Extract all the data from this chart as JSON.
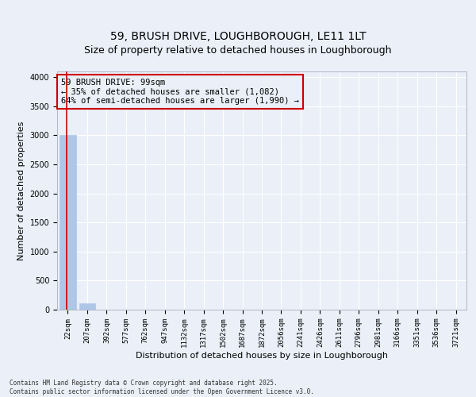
{
  "title1": "59, BRUSH DRIVE, LOUGHBOROUGH, LE11 1LT",
  "title2": "Size of property relative to detached houses in Loughborough",
  "xlabel": "Distribution of detached houses by size in Loughborough",
  "ylabel": "Number of detached properties",
  "categories": [
    "22sqm",
    "207sqm",
    "392sqm",
    "577sqm",
    "762sqm",
    "947sqm",
    "1132sqm",
    "1317sqm",
    "1502sqm",
    "1687sqm",
    "1872sqm",
    "2056sqm",
    "2241sqm",
    "2426sqm",
    "2611sqm",
    "2796sqm",
    "2981sqm",
    "3166sqm",
    "3351sqm",
    "3536sqm",
    "3721sqm"
  ],
  "values": [
    3000,
    110,
    2,
    1,
    0,
    0,
    0,
    0,
    0,
    0,
    0,
    0,
    0,
    0,
    0,
    0,
    0,
    0,
    0,
    0,
    0
  ],
  "bar_color": "#aec6e8",
  "bar_edge_color": "#aec6e8",
  "ylim": [
    0,
    4100
  ],
  "yticks": [
    0,
    500,
    1000,
    1500,
    2000,
    2500,
    3000,
    3500,
    4000
  ],
  "property_line_color": "#cc0000",
  "annotation_text": "59 BRUSH DRIVE: 99sqm\n← 35% of detached houses are smaller (1,082)\n64% of semi-detached houses are larger (1,990) →",
  "annotation_box_color": "#cc0000",
  "footer1": "Contains HM Land Registry data © Crown copyright and database right 2025.",
  "footer2": "Contains public sector information licensed under the Open Government Licence v3.0.",
  "background_color": "#eaeff8",
  "grid_color": "#ffffff",
  "title_fontsize": 10,
  "tick_fontsize": 6.5,
  "ylabel_fontsize": 8,
  "xlabel_fontsize": 8,
  "annotation_fontsize": 7.5,
  "footer_fontsize": 5.5
}
